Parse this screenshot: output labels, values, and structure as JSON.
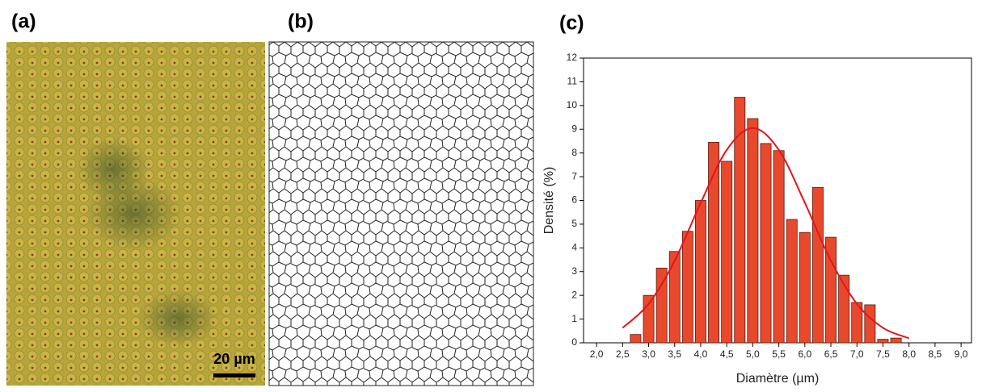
{
  "panels": {
    "a": {
      "label": "(a)",
      "scale_bar": "20 µm"
    },
    "b": {
      "label": "(b)"
    },
    "c": {
      "label": "(c)"
    }
  },
  "chart_data": {
    "type": "histogram",
    "xlabel": "Diamètre (µm)",
    "ylabel": "Densité (%)",
    "bins": [
      2.625,
      2.875,
      3.125,
      3.375,
      3.625,
      3.875,
      4.125,
      4.375,
      4.625,
      4.875,
      5.125,
      5.375,
      5.625,
      5.875,
      6.125,
      6.375,
      6.625,
      6.875,
      7.125,
      7.375,
      7.625,
      7.875
    ],
    "values": [
      0.35,
      2.0,
      3.15,
      3.85,
      4.7,
      6.0,
      8.45,
      7.65,
      10.35,
      9.45,
      8.4,
      8.1,
      5.2,
      4.65,
      6.55,
      4.45,
      2.85,
      1.7,
      1.6,
      0.15,
      0.2
    ],
    "color": "#e8492c",
    "edge_color": "#5a1a10",
    "fit": {
      "x": [
        2.5,
        3.0,
        3.5,
        4.0,
        4.5,
        5.0,
        5.5,
        6.0,
        6.5,
        7.0,
        7.5,
        8.0
      ],
      "values": [
        0.63,
        1.64,
        3.46,
        5.9,
        8.13,
        9.05,
        8.13,
        5.9,
        3.46,
        1.64,
        0.63,
        0.19
      ],
      "color": "#e3141c"
    },
    "xlim": [
      1.75,
      9.2
    ],
    "ylim": [
      0,
      12
    ],
    "xticks": [
      {
        "value": 2.0,
        "label": "2,0"
      },
      {
        "value": 2.5,
        "label": "2,5"
      },
      {
        "value": 3.0,
        "label": "3,0"
      },
      {
        "value": 3.5,
        "label": "3,5"
      },
      {
        "value": 4.0,
        "label": "4,0"
      },
      {
        "value": 4.5,
        "label": "4,5"
      },
      {
        "value": 5.0,
        "label": "5,0"
      },
      {
        "value": 5.5,
        "label": "5,5"
      },
      {
        "value": 6.0,
        "label": "6,0"
      },
      {
        "value": 6.5,
        "label": "6,5"
      },
      {
        "value": 7.0,
        "label": "7,0"
      },
      {
        "value": 7.5,
        "label": "7,5"
      },
      {
        "value": 8.0,
        "label": "8,0"
      },
      {
        "value": 8.5,
        "label": "8,5"
      },
      {
        "value": 9.0,
        "label": "9,0"
      }
    ],
    "yticks": [
      0,
      1,
      2,
      3,
      4,
      5,
      6,
      7,
      8,
      9,
      10,
      11,
      12
    ]
  }
}
